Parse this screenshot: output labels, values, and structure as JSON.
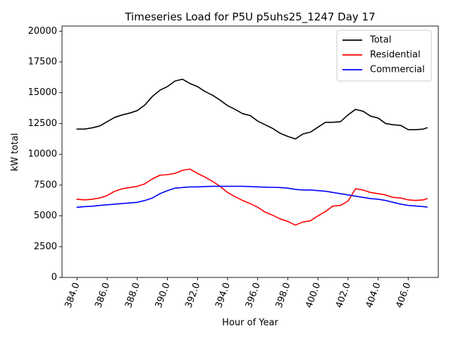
{
  "chart_data": {
    "type": "line",
    "title": "Timeseries Load for P5U p5uhs25_1247  Day 17",
    "xlabel": "Hour of Year",
    "ylabel": "kW total",
    "xlim": [
      383.0,
      408.0
    ],
    "ylim": [
      0,
      20416
    ],
    "xticks": [
      384,
      386,
      388,
      390,
      392,
      394,
      396,
      398,
      400,
      402,
      404,
      406
    ],
    "xtick_labels": [
      "384.0",
      "386.0",
      "388.0",
      "390.0",
      "392.0",
      "394.0",
      "396.0",
      "398.0",
      "400.0",
      "402.0",
      "404.0",
      "406.0"
    ],
    "yticks": [
      0,
      2500,
      5000,
      7500,
      10000,
      12500,
      15000,
      17500,
      20000
    ],
    "ytick_labels": [
      "0",
      "2500",
      "5000",
      "7500",
      "10000",
      "12500",
      "15000",
      "17500",
      "20000"
    ],
    "legend_position": "top-right",
    "x": [
      384.0,
      384.5,
      385.0,
      385.5,
      386.0,
      386.5,
      387.0,
      387.5,
      388.0,
      388.5,
      389.0,
      389.5,
      390.0,
      390.5,
      391.0,
      391.5,
      392.0,
      392.5,
      393.0,
      393.5,
      394.0,
      394.5,
      395.0,
      395.5,
      396.0,
      396.5,
      397.0,
      397.5,
      398.0,
      398.5,
      399.0,
      399.5,
      400.0,
      400.5,
      401.0,
      401.5,
      402.0,
      402.5,
      403.0,
      403.5,
      404.0,
      404.5,
      405.0,
      405.5,
      406.0,
      406.5,
      407.0,
      407.25
    ],
    "series": [
      {
        "name": "Total",
        "color": "#000000",
        "values": [
          12050,
          12050,
          12150,
          12300,
          12650,
          13000,
          13200,
          13350,
          13550,
          14000,
          14700,
          15200,
          15500,
          15950,
          16100,
          15750,
          15500,
          15100,
          14800,
          14400,
          13950,
          13650,
          13300,
          13150,
          12700,
          12400,
          12100,
          11700,
          11450,
          11250,
          11650,
          11800,
          12200,
          12600,
          12600,
          12650,
          13200,
          13650,
          13500,
          13100,
          12950,
          12500,
          12400,
          12350,
          12000,
          12000,
          12050,
          12150
        ]
      },
      {
        "name": "Residential",
        "color": "#ff0000",
        "values": [
          6350,
          6300,
          6350,
          6450,
          6650,
          7000,
          7200,
          7300,
          7400,
          7600,
          8000,
          8300,
          8350,
          8450,
          8700,
          8800,
          8450,
          8150,
          7800,
          7400,
          6900,
          6550,
          6250,
          6000,
          5700,
          5300,
          5050,
          4750,
          4550,
          4250,
          4500,
          4600,
          5000,
          5350,
          5800,
          5850,
          6200,
          7200,
          7100,
          6900,
          6800,
          6700,
          6500,
          6450,
          6300,
          6250,
          6300,
          6400
        ]
      },
      {
        "name": "Commercial",
        "color": "#0000ff",
        "values": [
          5700,
          5750,
          5780,
          5850,
          5900,
          5950,
          6000,
          6050,
          6100,
          6250,
          6450,
          6800,
          7050,
          7250,
          7300,
          7350,
          7350,
          7380,
          7400,
          7400,
          7400,
          7400,
          7400,
          7380,
          7350,
          7330,
          7320,
          7300,
          7250,
          7150,
          7100,
          7100,
          7050,
          7000,
          6900,
          6800,
          6700,
          6600,
          6500,
          6400,
          6350,
          6250,
          6100,
          5950,
          5850,
          5800,
          5750,
          5720
        ]
      }
    ]
  }
}
